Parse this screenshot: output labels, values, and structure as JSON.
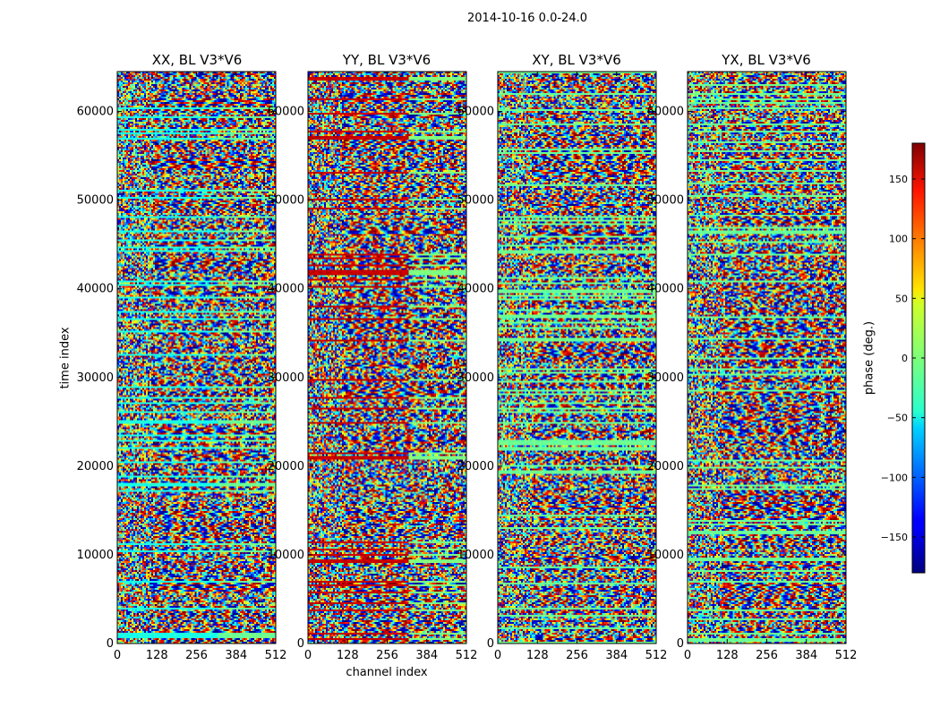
{
  "figure": {
    "title": "2014-10-16 0.0-24.0",
    "ylabel": "time index",
    "xlabel": "channel index",
    "colorbar_label": "phase (deg.)"
  },
  "chart_data": {
    "type": "heatmap",
    "panels": [
      {
        "title": "XX, BL V3*V6"
      },
      {
        "title": "YY, BL V3*V6"
      },
      {
        "title": "XY, BL V3*V6"
      },
      {
        "title": "YX, BL V3*V6"
      }
    ],
    "x_ticks": [
      0,
      128,
      256,
      384,
      512
    ],
    "x_tick_labels": [
      "0",
      "128",
      "256",
      "384",
      "512"
    ],
    "xlim": [
      0,
      512
    ],
    "y_ticks": [
      0,
      10000,
      20000,
      30000,
      40000,
      50000,
      60000
    ],
    "y_tick_labels": [
      "0",
      "10000",
      "20000",
      "30000",
      "40000",
      "50000",
      "60000"
    ],
    "ylim": [
      0,
      64500
    ],
    "colorbar": {
      "colormap": "jet",
      "range": [
        -180,
        180
      ],
      "ticks": [
        -150,
        -100,
        -50,
        0,
        50,
        100,
        150
      ],
      "tick_labels": [
        "−150",
        "−100",
        "−50",
        "0",
        "50",
        "100",
        "150"
      ]
    },
    "grid": false
  }
}
